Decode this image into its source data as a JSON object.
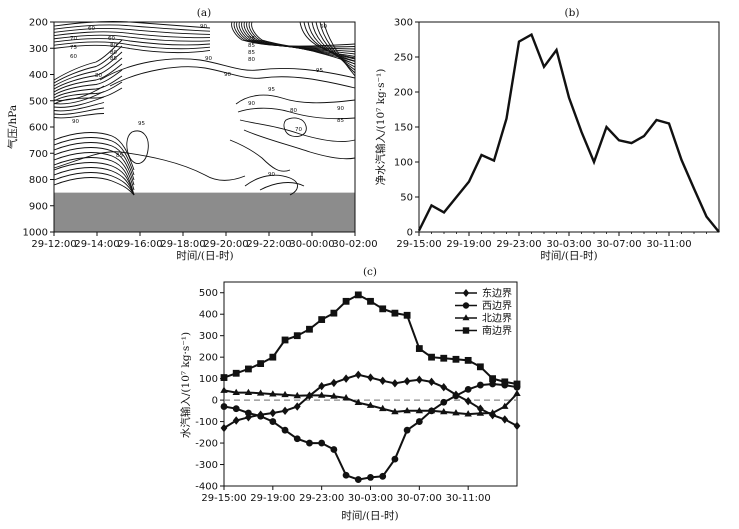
{
  "chart_data": [
    {
      "id": "a",
      "type": "contour",
      "panel_label": "(a)",
      "xlabel": "时间/(日-时)",
      "ylabel": "气压/hPa",
      "x_ticks": [
        "29-12:00",
        "29-14:00",
        "29-16:00",
        "29-18:00",
        "29-20:00",
        "29-22:00",
        "30-00:00",
        "30-02:00"
      ],
      "y_ticks": [
        200,
        300,
        400,
        500,
        600,
        700,
        800,
        900,
        1000
      ],
      "ylim": [
        1000,
        200
      ],
      "terrain_below_hPa": 850,
      "terrain_color": "#8c8c8c",
      "contour_labels": [
        "60",
        "70",
        "75",
        "80",
        "85",
        "90",
        "95"
      ]
    },
    {
      "id": "b",
      "type": "line",
      "panel_label": "(b)",
      "xlabel": "时间/(日-时)",
      "ylabel": "净水汽输入/(10⁷ kg·s⁻¹)",
      "x_ticks": [
        "29-15:00",
        "29-19:00",
        "29-23:00",
        "30-03:00",
        "30-07:00",
        "30-11:00"
      ],
      "y_ticks": [
        0,
        50,
        100,
        150,
        200,
        250,
        300
      ],
      "ylim": [
        0,
        300
      ],
      "x_hours": [
        0,
        1,
        2,
        3,
        4,
        5,
        6,
        7,
        8,
        9,
        10,
        11,
        12,
        13,
        14,
        15,
        16,
        17,
        18,
        19,
        20,
        21,
        22,
        23,
        24
      ],
      "values": [
        2,
        38,
        28,
        50,
        72,
        110,
        102,
        162,
        272,
        282,
        236,
        260,
        192,
        143,
        100,
        150,
        131,
        127,
        137,
        160,
        155,
        103,
        62,
        22,
        0
      ]
    },
    {
      "id": "c",
      "type": "line",
      "panel_label": "(c)",
      "xlabel": "时间/(日-时)",
      "ylabel": "水汽输入/(10⁷ kg·s⁻¹)",
      "x_ticks": [
        "29-15:00",
        "29-19:00",
        "29-23:00",
        "30-03:00",
        "30-07:00",
        "30-11:00"
      ],
      "y_ticks": [
        -400,
        -300,
        -200,
        -100,
        0,
        100,
        200,
        300,
        400,
        500
      ],
      "ylim": [
        -400,
        550
      ],
      "x_hours": [
        0,
        1,
        2,
        3,
        4,
        5,
        6,
        7,
        8,
        9,
        10,
        11,
        12,
        13,
        14,
        15,
        16,
        17,
        18,
        19,
        20,
        21,
        22,
        23,
        24
      ],
      "series": [
        {
          "name": "东边界",
          "marker": "diamond",
          "values": [
            -130,
            -95,
            -80,
            -68,
            -60,
            -50,
            -30,
            20,
            65,
            80,
            100,
            118,
            105,
            90,
            78,
            88,
            95,
            85,
            60,
            25,
            -5,
            -40,
            -70,
            -90,
            -120
          ]
        },
        {
          "name": "西边界",
          "marker": "circle",
          "values": [
            -30,
            -40,
            -60,
            -75,
            -100,
            -140,
            -180,
            -200,
            -200,
            -230,
            -350,
            -370,
            -360,
            -355,
            -275,
            -140,
            -100,
            -50,
            -10,
            20,
            50,
            70,
            75,
            70,
            60
          ]
        },
        {
          "name": "北边界",
          "marker": "triangle",
          "values": [
            45,
            35,
            35,
            32,
            28,
            25,
            20,
            22,
            22,
            18,
            10,
            -12,
            -25,
            -40,
            -55,
            -50,
            -50,
            -50,
            -55,
            -60,
            -65,
            -62,
            -60,
            -30,
            30
          ]
        },
        {
          "name": "南边界",
          "marker": "square",
          "values": [
            105,
            125,
            145,
            170,
            200,
            280,
            300,
            330,
            375,
            405,
            460,
            490,
            460,
            425,
            405,
            395,
            240,
            200,
            195,
            190,
            185,
            155,
            100,
            85,
            75
          ]
        }
      ],
      "zero_line": "dashed"
    }
  ]
}
